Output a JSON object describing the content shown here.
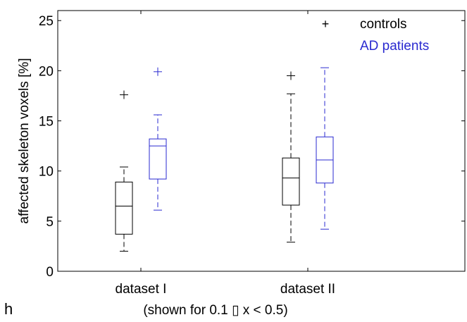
{
  "chart_data": {
    "type": "box",
    "ylabel": "affected skeleton voxels [%]",
    "ylim": [
      0,
      26
    ],
    "yticks": [
      0,
      5,
      10,
      15,
      20,
      25
    ],
    "categories": [
      "dataset I",
      "dataset II"
    ],
    "xlabel": "(shown for 0.1 ▯ x < 0.5)",
    "panel_label": "h",
    "grid": false,
    "legend_position": "top-right",
    "series": [
      {
        "name": "controls",
        "color": "#000000",
        "boxes": [
          {
            "category": "dataset I",
            "whisker_low": 2.0,
            "q1": 3.7,
            "median": 6.5,
            "q3": 8.9,
            "whisker_high": 10.4,
            "outliers": [
              17.6
            ]
          },
          {
            "category": "dataset II",
            "whisker_low": 2.9,
            "q1": 6.6,
            "median": 9.3,
            "q3": 11.3,
            "whisker_high": 17.7,
            "outliers": [
              19.5
            ]
          }
        ]
      },
      {
        "name": "AD patients",
        "color": "#2a2ad0",
        "boxes": [
          {
            "category": "dataset I",
            "whisker_low": 6.1,
            "q1": 9.2,
            "median": 12.5,
            "q3": 13.2,
            "whisker_high": 15.6,
            "outliers": [
              19.9
            ]
          },
          {
            "category": "dataset II",
            "whisker_low": 4.2,
            "q1": 8.8,
            "median": 11.1,
            "q3": 13.4,
            "whisker_high": 20.3,
            "outliers": []
          }
        ]
      }
    ]
  }
}
